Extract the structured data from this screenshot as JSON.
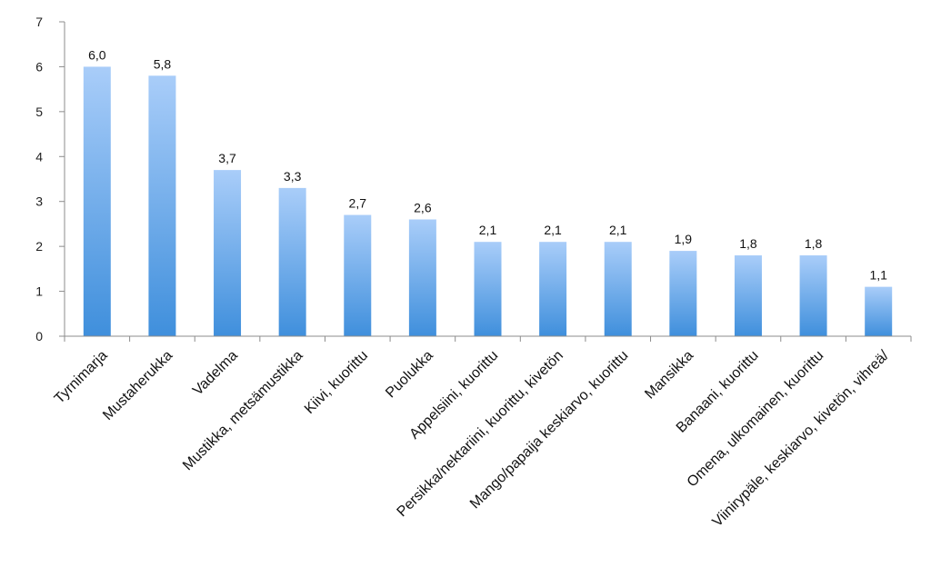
{
  "chart_data": {
    "type": "bar",
    "title": "",
    "xlabel": "",
    "ylabel": "",
    "ylim": [
      0,
      7
    ],
    "yticks": [
      0,
      1,
      2,
      3,
      4,
      5,
      6,
      7
    ],
    "grid": false,
    "legend": "none",
    "categories": [
      "Tyrnimarja",
      "Mustaherukka",
      "Vadelma",
      "Mustikka, metsämustikka",
      "Kiivi, kuorittu",
      "Puolukka",
      "Appelsiini, kuorittu",
      "Persikka/nektariini, kuorittu, kivetön",
      "Mango/papaija keskiarvo, kuorittu",
      "Mansikka",
      "Banaani, kuorittu",
      "Omena, ulkomainen, kuorittu",
      "Viinirypäle, keskiarvo, kivetön, vihreä/"
    ],
    "values": [
      6.0,
      5.8,
      3.7,
      3.3,
      2.7,
      2.6,
      2.1,
      2.1,
      2.1,
      1.9,
      1.8,
      1.8,
      1.1
    ],
    "value_labels": [
      "6,0",
      "5,8",
      "3,7",
      "3,3",
      "2,7",
      "2,6",
      "2,1",
      "2,1",
      "2,1",
      "1,9",
      "1,8",
      "1,8",
      "1,1"
    ],
    "colors": {
      "bar_top": "#a9cdf9",
      "bar_bottom": "#3f8fdc",
      "axis": "#8c8c8c"
    }
  }
}
